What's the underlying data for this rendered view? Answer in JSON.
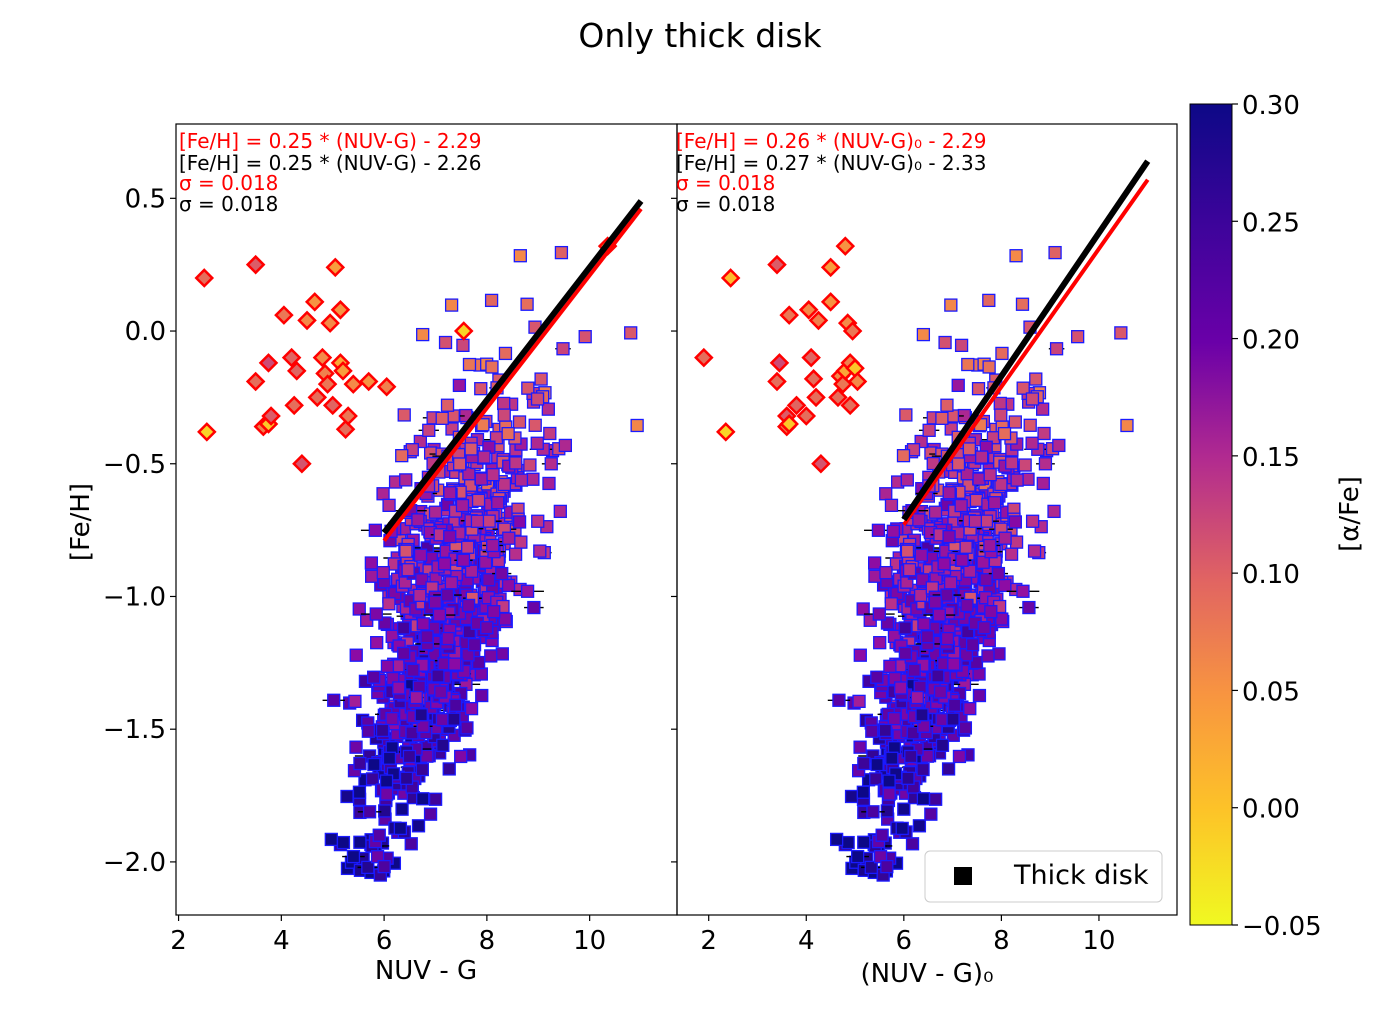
{
  "figure_title": "Only thick disk",
  "colors": {
    "fit_red": "#ff0000",
    "fit_black": "#000000",
    "marker_edge_square": "#1a1aff",
    "marker_edge_diamond": "#ff0000",
    "frame": "#000000"
  },
  "colorbar": {
    "label": "[α/Fe]",
    "range": [
      -0.05,
      0.3
    ],
    "ticks": [
      "0.30",
      "0.25",
      "0.20",
      "0.15",
      "0.10",
      "0.05",
      "0.00",
      "−0.05"
    ],
    "colormap": "plasma"
  },
  "legend": {
    "label": "Thick disk",
    "position": "lower-right of right panel"
  },
  "chart_data": [
    {
      "type": "scatter",
      "xlabel": "NUV - G",
      "ylabel": "[Fe/H]",
      "xlim": [
        1.95,
        11.7
      ],
      "ylim": [
        -2.2,
        0.78
      ],
      "xticks": [
        "2",
        "4",
        "6",
        "8",
        "10"
      ],
      "yticks": [
        "0.5",
        "0.0",
        "−0.5",
        "−1.0",
        "−1.5",
        "−2.0"
      ],
      "annotations": {
        "fit_red": "[Fe/H] = 0.25 * (NUV-G) - 2.29",
        "fit_black": "[Fe/H] = 0.25 * (NUV-G) - 2.26",
        "sigma_red": "σ = 0.018",
        "sigma_black": "σ = 0.018"
      },
      "fits": [
        {
          "color": "red",
          "slope": 0.25,
          "intercept": -2.29,
          "x_range": [
            6.0,
            11.0
          ]
        },
        {
          "color": "black",
          "slope": 0.25,
          "intercept": -2.26,
          "x_range": [
            6.0,
            11.0
          ]
        }
      ],
      "outliers": [
        {
          "x": 2.5,
          "y": 0.2,
          "alpha": 0.08
        },
        {
          "x": 2.55,
          "y": -0.38,
          "alpha": -0.02
        },
        {
          "x": 3.5,
          "y": 0.25,
          "alpha": 0.1
        },
        {
          "x": 3.5,
          "y": -0.19,
          "alpha": 0.08
        },
        {
          "x": 3.65,
          "y": -0.36,
          "alpha": 0.06
        },
        {
          "x": 3.75,
          "y": -0.35,
          "alpha": -0.01
        },
        {
          "x": 3.75,
          "y": -0.12,
          "alpha": 0.12
        },
        {
          "x": 3.8,
          "y": -0.32,
          "alpha": 0.1
        },
        {
          "x": 4.05,
          "y": 0.06,
          "alpha": 0.07
        },
        {
          "x": 4.2,
          "y": -0.1,
          "alpha": 0.09
        },
        {
          "x": 4.25,
          "y": -0.28,
          "alpha": 0.08
        },
        {
          "x": 4.3,
          "y": -0.15,
          "alpha": 0.09
        },
        {
          "x": 4.4,
          "y": -0.5,
          "alpha": 0.11
        },
        {
          "x": 4.5,
          "y": 0.04,
          "alpha": 0.05
        },
        {
          "x": 4.65,
          "y": 0.11,
          "alpha": 0.04
        },
        {
          "x": 4.7,
          "y": -0.25,
          "alpha": 0.08
        },
        {
          "x": 4.8,
          "y": -0.1,
          "alpha": 0.05
        },
        {
          "x": 4.85,
          "y": -0.16,
          "alpha": 0.06
        },
        {
          "x": 4.9,
          "y": -0.2,
          "alpha": 0.07
        },
        {
          "x": 4.95,
          "y": 0.03,
          "alpha": 0.05
        },
        {
          "x": 5.0,
          "y": -0.28,
          "alpha": 0.09
        },
        {
          "x": 5.05,
          "y": 0.24,
          "alpha": 0.03
        },
        {
          "x": 5.15,
          "y": 0.08,
          "alpha": 0.04
        },
        {
          "x": 5.15,
          "y": -0.12,
          "alpha": 0.02
        },
        {
          "x": 5.2,
          "y": -0.15,
          "alpha": 0.03
        },
        {
          "x": 5.25,
          "y": -0.37,
          "alpha": 0.08
        },
        {
          "x": 5.3,
          "y": -0.32,
          "alpha": 0.07
        },
        {
          "x": 5.4,
          "y": -0.2,
          "alpha": 0.05
        },
        {
          "x": 5.7,
          "y": -0.19,
          "alpha": 0.04
        },
        {
          "x": 6.05,
          "y": -0.21,
          "alpha": 0.06
        },
        {
          "x": 7.55,
          "y": 0.0,
          "alpha": -0.02
        },
        {
          "x": 10.35,
          "y": 0.32,
          "alpha": 0.04
        }
      ]
    },
    {
      "type": "scatter",
      "xlabel": "(NUV - G)₀",
      "ylabel": "",
      "xlim": [
        1.35,
        11.6
      ],
      "ylim": [
        -2.2,
        0.78
      ],
      "xticks": [
        "2",
        "4",
        "6",
        "8",
        "10"
      ],
      "annotations": {
        "fit_red": "[Fe/H] = 0.26 * (NUV-G)₀ - 2.29",
        "fit_black": "[Fe/H] = 0.27 * (NUV-G)₀ - 2.33",
        "sigma_red": "σ = 0.018",
        "sigma_black": "σ = 0.018"
      },
      "fits": [
        {
          "color": "red",
          "slope": 0.26,
          "intercept": -2.29,
          "x_range": [
            6.0,
            11.0
          ]
        },
        {
          "color": "black",
          "slope": 0.27,
          "intercept": -2.33,
          "x_range": [
            6.0,
            11.0
          ]
        }
      ],
      "outliers": [
        {
          "x": 1.9,
          "y": -0.1,
          "alpha": 0.08
        },
        {
          "x": 2.35,
          "y": -0.38,
          "alpha": -0.02
        },
        {
          "x": 2.45,
          "y": 0.2,
          "alpha": 0.0
        },
        {
          "x": 3.4,
          "y": 0.25,
          "alpha": 0.1
        },
        {
          "x": 3.4,
          "y": -0.19,
          "alpha": 0.08
        },
        {
          "x": 3.45,
          "y": -0.12,
          "alpha": 0.12
        },
        {
          "x": 3.6,
          "y": -0.32,
          "alpha": 0.1
        },
        {
          "x": 3.6,
          "y": -0.36,
          "alpha": 0.06
        },
        {
          "x": 3.65,
          "y": 0.06,
          "alpha": 0.07
        },
        {
          "x": 3.65,
          "y": -0.35,
          "alpha": -0.01
        },
        {
          "x": 3.8,
          "y": -0.28,
          "alpha": 0.09
        },
        {
          "x": 4.0,
          "y": -0.32,
          "alpha": 0.08
        },
        {
          "x": 4.05,
          "y": 0.08,
          "alpha": 0.05
        },
        {
          "x": 4.1,
          "y": -0.1,
          "alpha": 0.09
        },
        {
          "x": 4.15,
          "y": -0.18,
          "alpha": 0.08
        },
        {
          "x": 4.2,
          "y": -0.25,
          "alpha": 0.08
        },
        {
          "x": 4.25,
          "y": 0.04,
          "alpha": 0.06
        },
        {
          "x": 4.3,
          "y": -0.5,
          "alpha": 0.11
        },
        {
          "x": 4.5,
          "y": 0.11,
          "alpha": 0.04
        },
        {
          "x": 4.5,
          "y": 0.24,
          "alpha": 0.03
        },
        {
          "x": 4.65,
          "y": -0.25,
          "alpha": 0.08
        },
        {
          "x": 4.7,
          "y": -0.17,
          "alpha": 0.05
        },
        {
          "x": 4.75,
          "y": -0.2,
          "alpha": 0.07
        },
        {
          "x": 4.8,
          "y": 0.32,
          "alpha": 0.04
        },
        {
          "x": 4.8,
          "y": -0.15,
          "alpha": 0.02
        },
        {
          "x": 4.85,
          "y": 0.03,
          "alpha": 0.05
        },
        {
          "x": 4.9,
          "y": -0.12,
          "alpha": 0.06
        },
        {
          "x": 4.9,
          "y": -0.28,
          "alpha": 0.08
        },
        {
          "x": 4.95,
          "y": -0.0,
          "alpha": 0.07
        },
        {
          "x": 5.0,
          "y": -0.14,
          "alpha": -0.01
        },
        {
          "x": 5.05,
          "y": -0.19,
          "alpha": 0.05
        }
      ]
    }
  ]
}
